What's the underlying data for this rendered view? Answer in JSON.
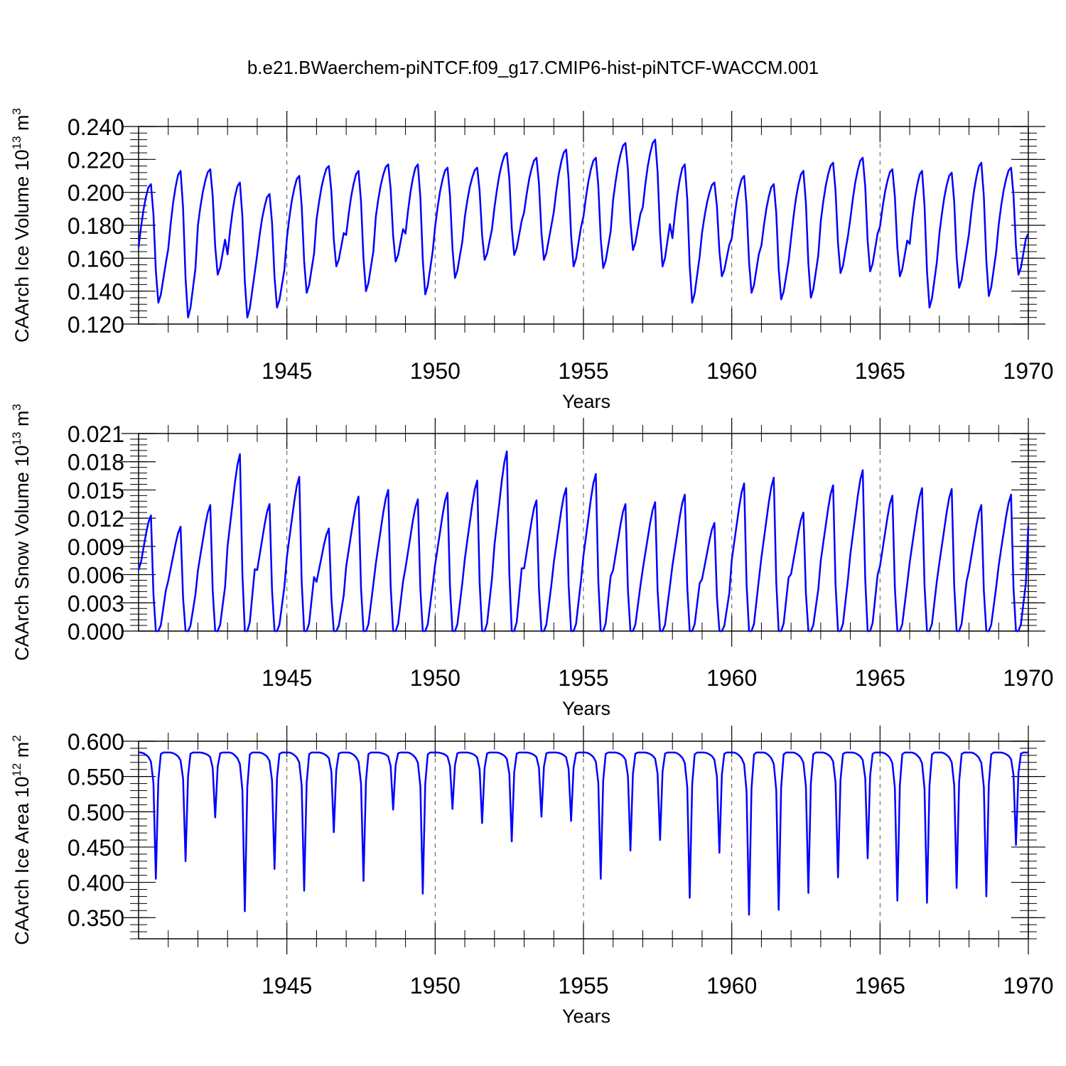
{
  "figure": {
    "title": "b.e21.BWaerchem-piNTCF.f09_g17.CMIP6-hist-piNTCF-WACCM.001"
  },
  "colors": {
    "series": "#0000ff",
    "axis": "#000000",
    "grid": "#555555"
  },
  "chart_data": [
    {
      "type": "line",
      "ylabel_main": "CAArch Ice Volume 10",
      "ylabel_exp": "13",
      "ylabel_unit": " m",
      "ylabel_unit_exp": "3",
      "xlabel": "Years",
      "xlim": [
        1940,
        1970
      ],
      "ylim": [
        0.12,
        0.24
      ],
      "xticks": [
        1945,
        1950,
        1955,
        1960,
        1965,
        1970
      ],
      "yticks": [
        0.12,
        0.14,
        0.16,
        0.18,
        0.2,
        0.22,
        0.24
      ],
      "ytick_labels": [
        "0.120",
        "0.140",
        "0.160",
        "0.180",
        "0.200",
        "0.220",
        "0.240"
      ],
      "grid": "vertical dashed at major x ticks",
      "seasonal_values": {
        "Jan": 0.175,
        "Feb": 0.188,
        "Mar": 0.199,
        "Apr": 0.207,
        "May": 0.213,
        "Jun": 0.215,
        "Jul": 0.196,
        "Aug": 0.16,
        "Sep": 0.14,
        "Oct": 0.145,
        "Nov": 0.155,
        "Dec": 0.165
      },
      "annual_max": [
        0.205,
        0.213,
        0.214,
        0.206,
        0.199,
        0.21,
        0.216,
        0.213,
        0.217,
        0.217,
        0.215,
        0.215,
        0.224,
        0.221,
        0.226,
        0.221,
        0.23,
        0.232,
        0.217,
        0.206,
        0.21,
        0.205,
        0.213,
        0.218,
        0.221,
        0.214,
        0.213,
        0.212,
        0.218,
        0.215
      ],
      "annual_min": [
        0.133,
        0.124,
        0.15,
        0.124,
        0.13,
        0.139,
        0.155,
        0.14,
        0.158,
        0.138,
        0.148,
        0.159,
        0.162,
        0.159,
        0.155,
        0.154,
        0.165,
        0.155,
        0.133,
        0.149,
        0.139,
        0.135,
        0.136,
        0.151,
        0.152,
        0.149,
        0.13,
        0.142,
        0.137,
        0.15
      ]
    },
    {
      "type": "line",
      "ylabel_main": "CAArch Snow Volume 10",
      "ylabel_exp": "13",
      "ylabel_unit": " m",
      "ylabel_unit_exp": "3",
      "xlabel": "Years",
      "xlim": [
        1940,
        1970
      ],
      "ylim": [
        0.0,
        0.021
      ],
      "xticks": [
        1945,
        1950,
        1955,
        1960,
        1965,
        1970
      ],
      "yticks": [
        0.0,
        0.003,
        0.006,
        0.009,
        0.012,
        0.015,
        0.018,
        0.021
      ],
      "ytick_labels": [
        "0.000",
        "0.003",
        "0.006",
        "0.009",
        "0.012",
        "0.015",
        "0.018",
        "0.021"
      ],
      "grid": "vertical dashed at major x ticks",
      "seasonal_fraction": {
        "Jan": 0.48,
        "Feb": 0.6,
        "Mar": 0.72,
        "Apr": 0.84,
        "May": 0.94,
        "Jun": 1.0,
        "Jul": 0.32,
        "Aug": 0.0,
        "Sep": 0.0,
        "Oct": 0.05,
        "Nov": 0.2,
        "Dec": 0.35
      },
      "annual_max": [
        0.0123,
        0.0111,
        0.0134,
        0.0188,
        0.0135,
        0.0164,
        0.0109,
        0.0143,
        0.015,
        0.014,
        0.0147,
        0.016,
        0.0191,
        0.0139,
        0.0152,
        0.0167,
        0.0135,
        0.0137,
        0.0145,
        0.0115,
        0.0157,
        0.0163,
        0.0126,
        0.0155,
        0.0171,
        0.0144,
        0.0152,
        0.0151,
        0.0134,
        0.0145
      ],
      "first_value": 0.0065,
      "last_value": 0.0112
    },
    {
      "type": "line",
      "ylabel_main": "CAArch Ice Area 10",
      "ylabel_exp": "12",
      "ylabel_unit": " m",
      "ylabel_unit_exp": "2",
      "xlabel": "Years",
      "xlim": [
        1940,
        1970
      ],
      "ylim": [
        0.32,
        0.6
      ],
      "xticks": [
        1945,
        1950,
        1955,
        1960,
        1965,
        1970
      ],
      "yticks": [
        0.35,
        0.4,
        0.45,
        0.5,
        0.55,
        0.6
      ],
      "ytick_labels": [
        "0.350",
        "0.400",
        "0.450",
        "0.500",
        "0.550",
        "0.600"
      ],
      "grid": "vertical dashed at major x ticks",
      "max_value": 0.584,
      "annual_min": [
        0.405,
        0.43,
        0.492,
        0.359,
        0.419,
        0.388,
        0.471,
        0.402,
        0.503,
        0.384,
        0.504,
        0.484,
        0.458,
        0.493,
        0.487,
        0.405,
        0.445,
        0.46,
        0.378,
        0.442,
        0.354,
        0.361,
        0.385,
        0.407,
        0.434,
        0.374,
        0.371,
        0.392,
        0.38,
        0.453
      ]
    }
  ]
}
